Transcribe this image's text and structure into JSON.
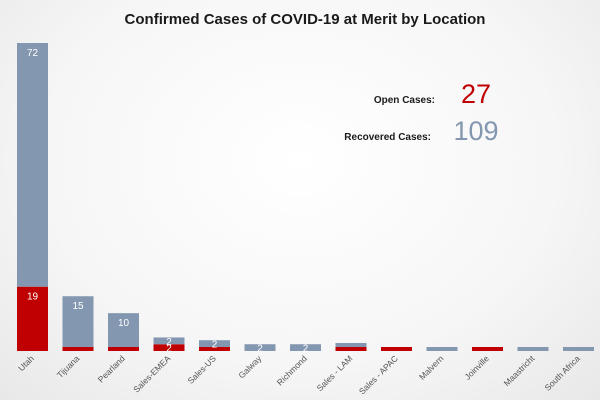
{
  "colors": {
    "open": "#c00000",
    "recovered": "#8497b0"
  },
  "summary": {
    "open_label": "Open Cases:",
    "open_value": "27",
    "recovered_label": "Recovered Cases:",
    "recovered_value": "109"
  },
  "chart_data": {
    "type": "bar",
    "stacked": true,
    "title": "Confirmed Cases of COVID-19 at Merit by Location",
    "xlabel": "",
    "ylabel": "",
    "ylim": [
      0,
      91
    ],
    "categories": [
      "Utah",
      "Tijuana",
      "Pearland",
      "Sales-EMEA",
      "Sales-US",
      "Galway",
      "Richmond",
      "Sales - LAM",
      "Sales - APAC",
      "Malvern",
      "Joinville",
      "Maastricht",
      "South Africa"
    ],
    "series": [
      {
        "name": "Open Cases",
        "color": "#c00000",
        "values": [
          19,
          1,
          1,
          2,
          1,
          0,
          0,
          1,
          1,
          0,
          1,
          0,
          0
        ]
      },
      {
        "name": "Recovered Cases",
        "color": "#8497b0",
        "values": [
          72,
          15,
          10,
          2,
          2,
          2,
          2,
          1,
          0,
          1,
          0,
          1,
          1
        ]
      }
    ],
    "data_labels": {
      "Open Cases": [
        "19",
        "",
        "",
        "2",
        "",
        "",
        "",
        "",
        "",
        "",
        "",
        "",
        ""
      ],
      "Recovered Cases": [
        "72",
        "15",
        "10",
        "2",
        "2",
        "2",
        "2",
        "",
        "",
        "",
        "",
        "",
        ""
      ]
    },
    "grid": false,
    "legend": "none"
  }
}
